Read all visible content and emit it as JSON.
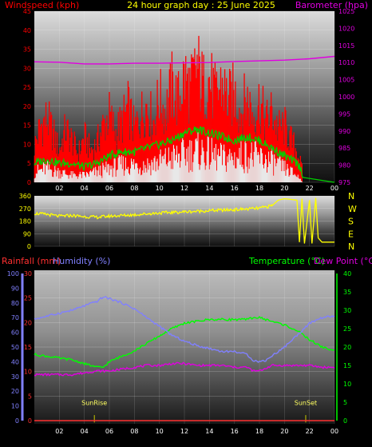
{
  "title": "24 hour graph day : 25 June 2025",
  "colors": {
    "background": "#000000",
    "wind": "#ff0000",
    "gust": "#e8e8e8",
    "avg_wind": "#00d000",
    "pressure": "#e000e0",
    "direction": "#ffff00",
    "rainfall": "#ff3030",
    "humidity": "#8080ff",
    "temperature": "#00ff00",
    "dewpoint": "#e000e0",
    "sun_markers": "#c8c800",
    "axis_text": "#ffffff"
  },
  "chart_data": [
    {
      "type": "line",
      "title": "24 hour graph day : 25 June 2025",
      "y_left_label": "Windspeed (kph)",
      "y_right_label": "Barometer (hpa)",
      "x_ticks": [
        "02",
        "04",
        "06",
        "08",
        "10",
        "12",
        "14",
        "16",
        "18",
        "20",
        "22",
        "00"
      ],
      "y_left_ticks": [
        "0",
        "5",
        "10",
        "15",
        "20",
        "25",
        "30",
        "35",
        "40",
        "45"
      ],
      "y_right_ticks": [
        "975",
        "980",
        "985",
        "990",
        "995",
        "1000",
        "1005",
        "1010",
        "1015",
        "1020",
        "1025"
      ],
      "ylim_left": [
        0,
        45
      ],
      "ylim_right": [
        975,
        1025
      ],
      "xlim": [
        0,
        24
      ],
      "series": [
        {
          "role": "wind_gust",
          "points": [
            [
              0,
              10
            ],
            [
              0.5,
              16
            ],
            [
              1,
              18
            ],
            [
              1.5,
              14
            ],
            [
              2,
              9
            ],
            [
              2.5,
              15
            ],
            [
              3,
              12
            ],
            [
              3.5,
              8
            ],
            [
              4,
              13
            ],
            [
              4.5,
              9
            ],
            [
              5,
              11
            ],
            [
              5.5,
              16
            ],
            [
              6,
              19
            ],
            [
              6.5,
              14
            ],
            [
              7,
              17
            ],
            [
              7.5,
              21
            ],
            [
              8,
              15
            ],
            [
              8.5,
              19
            ],
            [
              9,
              22
            ],
            [
              9.5,
              17
            ],
            [
              10,
              24
            ],
            [
              10.5,
              20
            ],
            [
              11,
              27
            ],
            [
              11.5,
              23
            ],
            [
              12,
              30
            ],
            [
              12.5,
              26
            ],
            [
              13,
              33
            ],
            [
              13.5,
              27
            ],
            [
              14,
              29
            ],
            [
              14.5,
              24
            ],
            [
              15,
              28
            ],
            [
              15.5,
              23
            ],
            [
              16,
              25
            ],
            [
              16.5,
              20
            ],
            [
              17,
              24
            ],
            [
              17.5,
              19
            ],
            [
              18,
              23
            ],
            [
              18.5,
              17
            ],
            [
              19,
              20
            ],
            [
              19.5,
              15
            ],
            [
              20,
              16
            ],
            [
              20.5,
              12
            ],
            [
              21,
              9
            ],
            [
              21.4,
              4
            ],
            [
              21.5,
              0
            ],
            [
              24,
              0
            ]
          ]
        },
        {
          "role": "wind_average",
          "points": [
            [
              0,
              5
            ],
            [
              1,
              6
            ],
            [
              2,
              5
            ],
            [
              3,
              5
            ],
            [
              4,
              4
            ],
            [
              5,
              5
            ],
            [
              6,
              7
            ],
            [
              7,
              8
            ],
            [
              8,
              8
            ],
            [
              9,
              9
            ],
            [
              10,
              10
            ],
            [
              11,
              11
            ],
            [
              12,
              13
            ],
            [
              13,
              14
            ],
            [
              14,
              13
            ],
            [
              15,
              12
            ],
            [
              16,
              11
            ],
            [
              17,
              12
            ],
            [
              18,
              11
            ],
            [
              19,
              9
            ],
            [
              20,
              7
            ],
            [
              21,
              5
            ],
            [
              21.4,
              3
            ],
            [
              21.5,
              0
            ],
            [
              24,
              0
            ]
          ]
        },
        {
          "role": "wind_speed",
          "points": [
            [
              0,
              3
            ],
            [
              1,
              4
            ],
            [
              2,
              3
            ],
            [
              3,
              2
            ],
            [
              4,
              2
            ],
            [
              5,
              3
            ],
            [
              6,
              4
            ],
            [
              7,
              5
            ],
            [
              8,
              5
            ],
            [
              9,
              5
            ],
            [
              10,
              6
            ],
            [
              11,
              7
            ],
            [
              12,
              8
            ],
            [
              13,
              9
            ],
            [
              14,
              8
            ],
            [
              15,
              7
            ],
            [
              16,
              7
            ],
            [
              17,
              8
            ],
            [
              18,
              7
            ],
            [
              19,
              6
            ],
            [
              20,
              4
            ],
            [
              21,
              2
            ],
            [
              21.5,
              0
            ],
            [
              24,
              0
            ]
          ]
        },
        {
          "role": "pressure",
          "points": [
            [
              0,
              1010.2
            ],
            [
              2,
              1010.1
            ],
            [
              4,
              1009.6
            ],
            [
              6,
              1009.6
            ],
            [
              8,
              1009.8
            ],
            [
              10,
              1009.8
            ],
            [
              12,
              1009.9
            ],
            [
              14,
              1010.0
            ],
            [
              16,
              1010.3
            ],
            [
              18,
              1010.5
            ],
            [
              20,
              1010.7
            ],
            [
              22,
              1011.1
            ],
            [
              24,
              1011.8
            ]
          ]
        }
      ]
    },
    {
      "type": "line",
      "y_left_ticks": [
        "0",
        "90",
        "180",
        "270",
        "360"
      ],
      "y_right_ticks": [
        "N",
        "W",
        "S",
        "E",
        "N"
      ],
      "x_ticks": [
        "02",
        "04",
        "06",
        "08",
        "10",
        "12",
        "14",
        "16",
        "18",
        "20",
        "22",
        "00"
      ],
      "ylim": [
        0,
        360
      ],
      "xlim": [
        0,
        24
      ],
      "series": [
        {
          "role": "wind_direction",
          "points": [
            [
              0,
              235
            ],
            [
              1,
              228
            ],
            [
              2,
              215
            ],
            [
              3,
              220
            ],
            [
              4,
              212
            ],
            [
              5,
              208
            ],
            [
              6,
              215
            ],
            [
              7,
              220
            ],
            [
              8,
              225
            ],
            [
              9,
              232
            ],
            [
              10,
              238
            ],
            [
              11,
              242
            ],
            [
              12,
              246
            ],
            [
              13,
              250
            ],
            [
              14,
              255
            ],
            [
              15,
              258
            ],
            [
              16,
              262
            ],
            [
              17,
              266
            ],
            [
              18,
              272
            ],
            [
              19,
              290
            ],
            [
              19.5,
              330
            ],
            [
              20,
              340
            ],
            [
              20.5,
              335
            ],
            [
              21,
              330
            ],
            [
              21.2,
              30
            ],
            [
              21.4,
              340
            ],
            [
              21.6,
              20
            ],
            [
              22,
              330
            ],
            [
              22.2,
              20
            ],
            [
              22.5,
              345
            ],
            [
              22.7,
              60
            ],
            [
              23,
              30
            ],
            [
              24,
              30
            ]
          ]
        }
      ]
    },
    {
      "type": "line",
      "y_left_labels": [
        "Rainfall (mm)",
        "Humidity (%)"
      ],
      "y_right_labels": [
        "Temperature (°C)",
        "Dew Point (°C)"
      ],
      "x_ticks": [
        "02",
        "04",
        "06",
        "08",
        "10",
        "12",
        "14",
        "16",
        "18",
        "20",
        "22",
        "00"
      ],
      "y_humidity_ticks": [
        "0",
        "10",
        "20",
        "30",
        "40",
        "50",
        "60",
        "70",
        "80",
        "90",
        "100"
      ],
      "y_rain_ticks": [
        "0",
        "5",
        "10",
        "15",
        "20",
        "25",
        "30"
      ],
      "y_temp_ticks": [
        "0",
        "5",
        "10",
        "15",
        "20",
        "25",
        "30",
        "35",
        "40"
      ],
      "xlim": [
        0,
        24
      ],
      "ylim_humidity": [
        0,
        100
      ],
      "ylim_rain": [
        0,
        30
      ],
      "ylim_temp": [
        0,
        40
      ],
      "annotations": [
        {
          "label": "SunRise",
          "x": 4.8
        },
        {
          "label": "SunSet",
          "x": 21.7
        }
      ],
      "series": [
        {
          "role": "humidity",
          "axis": "humidity",
          "points": [
            [
              0,
              69
            ],
            [
              1,
              71
            ],
            [
              2,
              73
            ],
            [
              3,
              75
            ],
            [
              4,
              78
            ],
            [
              5,
              81
            ],
            [
              5.5,
              84
            ],
            [
              6,
              83
            ],
            [
              7,
              80
            ],
            [
              8,
              76
            ],
            [
              9,
              70
            ],
            [
              10,
              64
            ],
            [
              11,
              58
            ],
            [
              12,
              54
            ],
            [
              13,
              51
            ],
            [
              14,
              49
            ],
            [
              15,
              47
            ],
            [
              16,
              47
            ],
            [
              17,
              45
            ],
            [
              17.5,
              41
            ],
            [
              18,
              40
            ],
            [
              18.5,
              41
            ],
            [
              19,
              44
            ],
            [
              20,
              50
            ],
            [
              21,
              58
            ],
            [
              22,
              66
            ],
            [
              23,
              70
            ],
            [
              24,
              71
            ]
          ]
        },
        {
          "role": "temperature",
          "axis": "temp",
          "points": [
            [
              0,
              18
            ],
            [
              1,
              17.5
            ],
            [
              2,
              17
            ],
            [
              3,
              16.5
            ],
            [
              4,
              15.5
            ],
            [
              5,
              14.5
            ],
            [
              5.5,
              14.5
            ],
            [
              6,
              16
            ],
            [
              7,
              17.5
            ],
            [
              8,
              19
            ],
            [
              9,
              21
            ],
            [
              10,
              23
            ],
            [
              11,
              25
            ],
            [
              12,
              26.5
            ],
            [
              13,
              27
            ],
            [
              14,
              27.5
            ],
            [
              15,
              27.5
            ],
            [
              16,
              27.5
            ],
            [
              17,
              27.5
            ],
            [
              17.5,
              28
            ],
            [
              18,
              28
            ],
            [
              19,
              27
            ],
            [
              20,
              26
            ],
            [
              21,
              24.5
            ],
            [
              22,
              22
            ],
            [
              23,
              20
            ],
            [
              24,
              19
            ]
          ]
        },
        {
          "role": "dewpoint",
          "axis": "temp",
          "points": [
            [
              0,
              12.5
            ],
            [
              2,
              12.5
            ],
            [
              3,
              12.5
            ],
            [
              4,
              13
            ],
            [
              5,
              13.5
            ],
            [
              6,
              13.5
            ],
            [
              7,
              14
            ],
            [
              8,
              14.5
            ],
            [
              9,
              15
            ],
            [
              10,
              15
            ],
            [
              11,
              15.5
            ],
            [
              12,
              15.5
            ],
            [
              13,
              15
            ],
            [
              14,
              15
            ],
            [
              15,
              15
            ],
            [
              16,
              14.5
            ],
            [
              17,
              14.5
            ],
            [
              17.5,
              13.5
            ],
            [
              18,
              13.5
            ],
            [
              19,
              15
            ],
            [
              20,
              15
            ],
            [
              21,
              15
            ],
            [
              22,
              15
            ],
            [
              23,
              14.5
            ],
            [
              24,
              14.5
            ]
          ]
        },
        {
          "role": "rainfall",
          "axis": "rain",
          "points": [
            [
              0,
              0
            ],
            [
              24,
              0
            ]
          ]
        }
      ]
    }
  ]
}
